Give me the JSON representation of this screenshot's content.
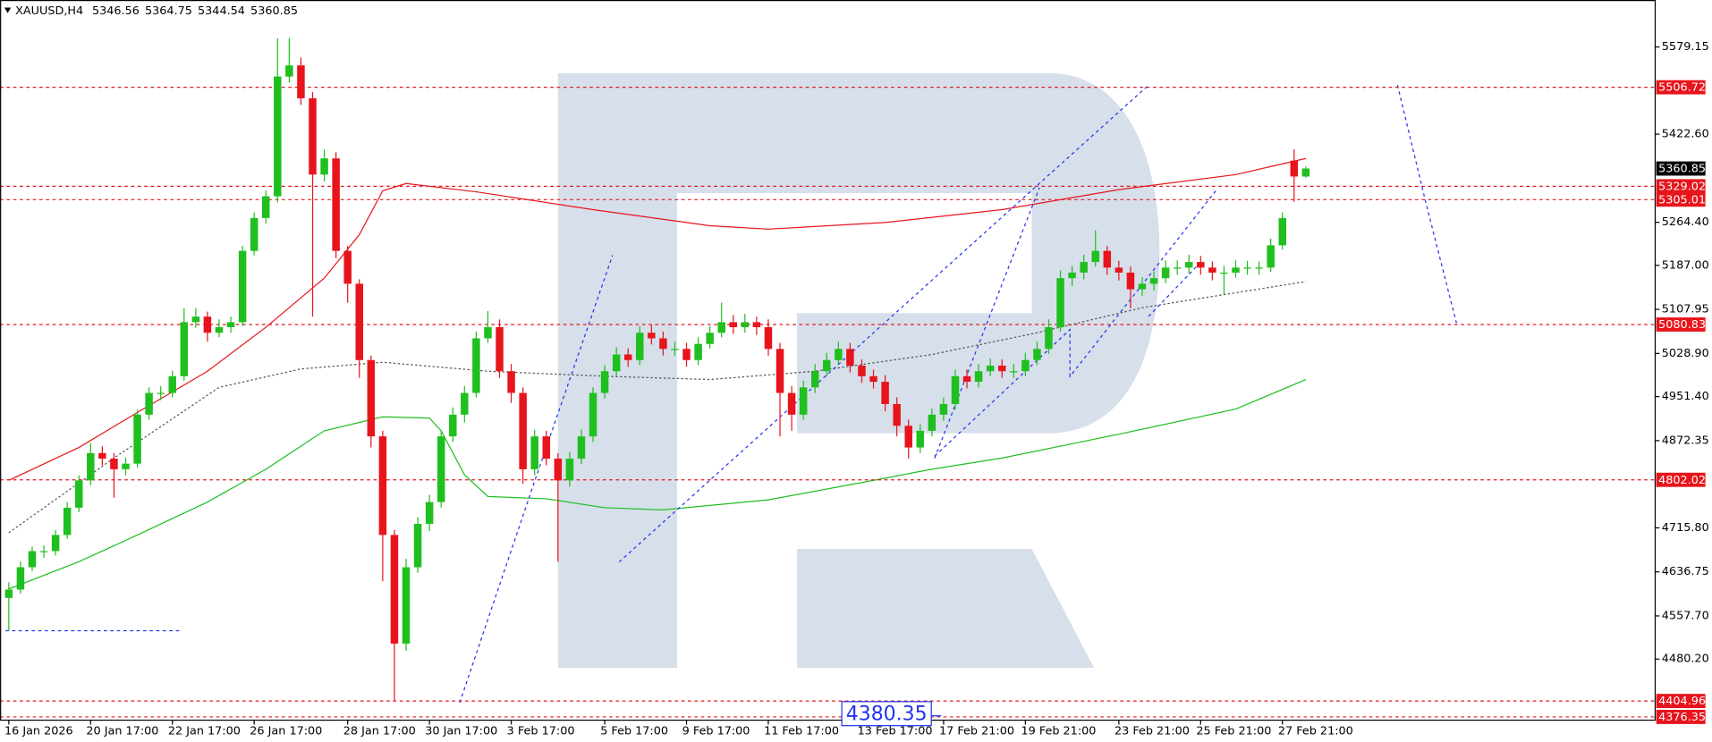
{
  "chart_data": {
    "type": "candlestick",
    "title": "XAUUSD,H4",
    "xlim": [
      -0.75,
      140.9
    ],
    "ylim": [
      4370.5,
      5663.4
    ],
    "bull_color": "#1fbf1f",
    "bear_color": "#e8141c",
    "grid": false,
    "open": [
      4590,
      4605,
      4645,
      4674,
      4674,
      4703,
      4752,
      4801,
      4850,
      4840,
      4821,
      4831,
      4919,
      4958,
      4958,
      4988,
      5085,
      5095,
      5066,
      5076,
      5085,
      5213,
      5272,
      5311,
      5526,
      5546,
      5487,
      5350,
      5379,
      5213,
      5154,
      5017,
      4880,
      4703,
      4508,
      4645,
      4723,
      4762,
      4880,
      4919,
      4958,
      5056,
      5076,
      4997,
      4958,
      4821,
      4880,
      4840,
      4801,
      4840,
      4880,
      4958,
      4997,
      5027,
      5017,
      5066,
      5056,
      5037,
      5037,
      5017,
      5046,
      5066,
      5085,
      5076,
      5085,
      5076,
      5037,
      4958,
      4919,
      4968,
      4997,
      5017,
      5037,
      5007,
      4988,
      4978,
      4938,
      4899,
      4860,
      4890,
      4919,
      4938,
      4988,
      4978,
      4997,
      5007,
      4997,
      4997,
      5017,
      5037,
      5076,
      5164,
      5174,
      5193,
      5213,
      5183,
      5174,
      5144,
      5154,
      5164,
      5183,
      5183,
      5193,
      5183,
      5174,
      5174,
      5183,
      5183,
      5183,
      5223,
      5375,
      5346.56
    ],
    "high": [
      4618,
      4655,
      4682,
      4684,
      4712,
      4762,
      4810,
      4868,
      4862,
      4850,
      4842,
      4928,
      4968,
      4970,
      4998,
      5110,
      5110,
      5104,
      5090,
      5095,
      5222,
      5282,
      5322,
      5595,
      5595,
      5560,
      5498,
      5395,
      5390,
      5222,
      5162,
      5025,
      4890,
      4712,
      4660,
      4735,
      4775,
      4890,
      4932,
      4970,
      5068,
      5105,
      5090,
      5010,
      4968,
      4892,
      4890,
      4850,
      4852,
      4892,
      4968,
      5008,
      5040,
      5038,
      5078,
      5080,
      5068,
      5050,
      5048,
      5058,
      5078,
      5120,
      5098,
      5100,
      5095,
      5090,
      5048,
      4970,
      4980,
      5010,
      5030,
      5050,
      5048,
      5018,
      5000,
      4990,
      4950,
      4910,
      4902,
      4930,
      4950,
      5000,
      5000,
      5010,
      5020,
      5018,
      5010,
      5030,
      5050,
      5090,
      5178,
      5186,
      5206,
      5250,
      5222,
      5195,
      5185,
      5166,
      5176,
      5196,
      5196,
      5206,
      5204,
      5194,
      5186,
      5196,
      5195,
      5194,
      5235,
      5282,
      5395,
      5364.75
    ],
    "low": [
      4531,
      4598,
      4638,
      4662,
      4666,
      4696,
      4744,
      4792,
      4828,
      4770,
      4810,
      4824,
      4910,
      4945,
      4950,
      4980,
      5075,
      5050,
      5058,
      5066,
      5078,
      5205,
      5262,
      5300,
      5515,
      5475,
      5095,
      5338,
      5200,
      5120,
      4985,
      4860,
      4620,
      4404.96,
      4495,
      4635,
      4710,
      4752,
      4870,
      4905,
      4950,
      5048,
      4985,
      4940,
      4795,
      4810,
      4828,
      4655,
      4790,
      4830,
      4870,
      4948,
      4988,
      5005,
      5008,
      5045,
      5025,
      5025,
      5005,
      5008,
      5038,
      5058,
      5064,
      5066,
      5062,
      5025,
      4880,
      4890,
      4910,
      4958,
      4988,
      5008,
      4995,
      4976,
      4966,
      4925,
      4880,
      4840,
      4850,
      4880,
      4908,
      4928,
      4966,
      4968,
      4988,
      4985,
      4985,
      4988,
      5008,
      5028,
      5068,
      5150,
      5162,
      5185,
      5170,
      5160,
      5110,
      5132,
      5142,
      5155,
      5170,
      5172,
      5170,
      5160,
      5135,
      5165,
      5170,
      5170,
      5175,
      5215,
      5301,
      5344.54
    ],
    "close": [
      4605,
      4645,
      4674,
      4674,
      4703,
      4752,
      4801,
      4850,
      4840,
      4821,
      4831,
      4919,
      4958,
      4958,
      4988,
      5085,
      5095,
      5066,
      5076,
      5085,
      5213,
      5272,
      5311,
      5526,
      5546,
      5487,
      5350,
      5379,
      5213,
      5154,
      5017,
      4880,
      4703,
      4508,
      4645,
      4723,
      4762,
      4880,
      4919,
      4958,
      5056,
      5076,
      4997,
      4958,
      4821,
      4880,
      4840,
      4801,
      4840,
      4880,
      4958,
      4997,
      5027,
      5017,
      5066,
      5056,
      5037,
      5037,
      5017,
      5046,
      5066,
      5085,
      5076,
      5085,
      5076,
      5037,
      4958,
      4919,
      4968,
      4997,
      5017,
      5037,
      5007,
      4988,
      4978,
      4938,
      4899,
      4860,
      4890,
      4919,
      4938,
      4988,
      4978,
      4997,
      5007,
      4997,
      4997,
      5017,
      5037,
      5076,
      5164,
      5174,
      5193,
      5213,
      5183,
      5174,
      5144,
      5154,
      5164,
      5183,
      5183,
      5193,
      5183,
      5174,
      5174,
      5183,
      5183,
      5183,
      5223,
      5272,
      5346.56,
      5360.85
    ],
    "overlays": [
      {
        "color": "#e8141c",
        "style": "solid",
        "x": [
          0,
          6,
          11,
          17,
          22,
          27,
          30,
          32,
          34,
          40,
          50,
          60,
          65,
          75,
          85,
          95,
          105,
          111
        ],
        "values": [
          4801,
          4860,
          4923,
          4997,
          5076,
          5164,
          5242,
          5321,
          5334,
          5319,
          5287,
          5258,
          5252,
          5264,
          5287,
          5323,
          5350,
          5379
        ]
      },
      {
        "color": "#1fbf1f",
        "style": "solid",
        "x": [
          0,
          6,
          11,
          17,
          22,
          27,
          32,
          36,
          37,
          39,
          41,
          46,
          51,
          56,
          65,
          75,
          79,
          85,
          95,
          105,
          111
        ],
        "values": [
          4606,
          4655,
          4703,
          4762,
          4821,
          4890,
          4915,
          4913,
          4890,
          4811,
          4772,
          4768,
          4752,
          4748,
          4766,
          4805,
          4821,
          4841,
          4884,
          4929,
          4982
        ]
      },
      {
        "color": "#555555",
        "style": "dotted",
        "x": [
          0,
          9,
          18,
          25,
          32,
          41,
          51,
          60,
          69,
          79,
          88,
          97,
          111
        ],
        "values": [
          4707,
          4841,
          4968,
          5001,
          5013,
          4997,
          4988,
          4982,
          4997,
          5027,
          5066,
          5111,
          5158
        ]
      }
    ],
    "yticks": [
      5579.15,
      {
        "value": 5422.6,
        "label": "5422.60"
      },
      {
        "value": 5264.4,
        "label": "5264.40"
      },
      {
        "value": 5187,
        "label": "5187.00"
      },
      5107.95,
      {
        "value": 5028.9,
        "label": "5028.90"
      },
      {
        "value": 4951.4,
        "label": "4951.40"
      },
      4872.35,
      {
        "value": 4715.8,
        "label": "4715.80"
      },
      4636.75,
      {
        "value": 4557.7,
        "label": "4557.70"
      },
      {
        "value": 4480.2,
        "label": "4480.20"
      }
    ],
    "xticks": [
      {
        "value": 0,
        "label": "16 Jan 2026"
      },
      {
        "value": 7,
        "label": "20 Jan 17:00"
      },
      {
        "value": 14,
        "label": "22 Jan 17:00"
      },
      {
        "value": 21,
        "label": "26 Jan 17:00"
      },
      {
        "value": 29,
        "label": "28 Jan 17:00"
      },
      {
        "value": 36,
        "label": "30 Jan 17:00"
      },
      {
        "value": 43,
        "label": "3 Feb 17:00"
      },
      {
        "value": 51,
        "label": "5 Feb 17:00"
      },
      {
        "value": 58,
        "label": "9 Feb 17:00"
      },
      {
        "value": 65,
        "label": "11 Feb 17:00"
      },
      {
        "value": 73,
        "label": "13 Feb 17:00"
      },
      {
        "value": 80,
        "label": "17 Feb 21:00"
      },
      {
        "value": 87,
        "label": "19 Feb 21:00"
      },
      {
        "value": 95,
        "label": "23 Feb 21:00"
      },
      {
        "value": 102,
        "label": "25 Feb 21:00"
      },
      {
        "value": 109,
        "label": "27 Feb 21:00"
      }
    ],
    "levels": [
      5506.72,
      5329.02,
      5305.01,
      5080.83,
      4802.02,
      4404.96,
      4376.35
    ],
    "level_color": "#e8141c",
    "annotation": "4380.35"
  }
}
